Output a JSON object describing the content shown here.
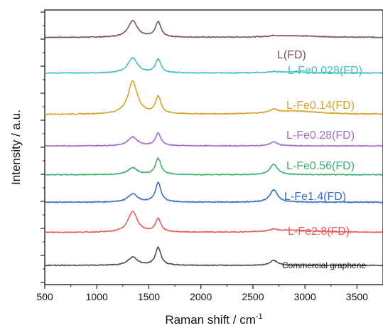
{
  "chart_data": {
    "type": "line",
    "xlabel": "Raman shift / cm",
    "xlabel_sup": "-1",
    "ylabel": "Intensity / a.u.",
    "xlim": [
      500,
      3750
    ],
    "xticks": [
      500,
      1000,
      1500,
      2000,
      2500,
      3000,
      3500
    ],
    "grid": false,
    "legend": "labels beside each curve",
    "series": [
      {
        "name": "L(FD)",
        "color": "#7a5353",
        "baseline": 0.9,
        "d": 0.06,
        "g": 0.055,
        "g2": 0.004,
        "bg": 0.006
      },
      {
        "name": "L-Fe0.028(FD)",
        "color": "#3fc2c6",
        "baseline": 0.77,
        "d": 0.055,
        "g": 0.05,
        "g2": 0.004,
        "bg": 0.004
      },
      {
        "name": "L-Fe0.14(FD)",
        "color": "#d4a32c",
        "baseline": 0.62,
        "d": 0.12,
        "g": 0.062,
        "g2": 0.012,
        "bg": 0.012
      },
      {
        "name": "L-Fe0.28(FD)",
        "color": "#a46fc6",
        "baseline": 0.505,
        "d": 0.032,
        "g": 0.045,
        "g2": 0.014,
        "bg": 0.0
      },
      {
        "name": "L-Fe0.56(FD)",
        "color": "#3eaf6c",
        "baseline": 0.4,
        "d": 0.025,
        "g": 0.06,
        "g2": 0.038,
        "bg": 0.0
      },
      {
        "name": "L-Fe1.4(FD)",
        "color": "#3a6cc0",
        "baseline": 0.3,
        "d": 0.03,
        "g": 0.07,
        "g2": 0.045,
        "bg": 0.0
      },
      {
        "name": "L-Fe2.8(FD)",
        "color": "#e85c5c",
        "baseline": 0.19,
        "d": 0.075,
        "g": 0.048,
        "g2": 0.008,
        "bg": 0.008
      },
      {
        "name": "Commercial graphene",
        "color": "#4d4d4d",
        "baseline": 0.07,
        "d": 0.03,
        "g": 0.065,
        "g2": 0.018,
        "bg": 0.0
      }
    ]
  }
}
